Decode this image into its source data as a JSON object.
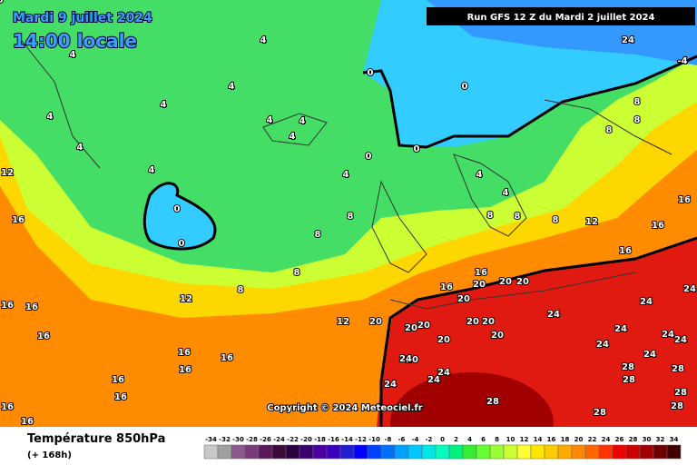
{
  "header": {
    "date": "Mardi 9 juillet 2024",
    "time": "14:00 locale",
    "run": "Run GFS 12 Z du Mardi 2 juillet 2024"
  },
  "copyright": "Copyright © 2024 Meteociel.fr",
  "footer": {
    "title": "Température 850hPa",
    "lead": "(+ 168h)"
  },
  "contour_labels": [
    4,
    4,
    4,
    4,
    4,
    4,
    4,
    4,
    4,
    4,
    0,
    0,
    0,
    0,
    0,
    0,
    4,
    4,
    4,
    8,
    8,
    8,
    8,
    8,
    8,
    8,
    8,
    8,
    8,
    12,
    12,
    12,
    12,
    16,
    16,
    16,
    16,
    16,
    16,
    16,
    16,
    16,
    16,
    16,
    16,
    16,
    16,
    16,
    16,
    20,
    20,
    20,
    20,
    20,
    20,
    20,
    20,
    20,
    20,
    20,
    20,
    24,
    24,
    24,
    24,
    24,
    24,
    24,
    24,
    24,
    24,
    24,
    24,
    28,
    28,
    28,
    28,
    28,
    28,
    28,
    24,
    -4,
    0
  ],
  "legend": {
    "values": [
      -34,
      -32,
      -30,
      -28,
      -26,
      -24,
      -22,
      -20,
      -18,
      -16,
      -14,
      -12,
      -10,
      -8,
      -6,
      -4,
      -2,
      0,
      2,
      4,
      6,
      8,
      10,
      12,
      14,
      16,
      18,
      20,
      22,
      24,
      26,
      28,
      30,
      32,
      34
    ],
    "colors": [
      "#c8c8c8",
      "#a0a0a0",
      "#8c5a8c",
      "#7a3a7a",
      "#5a1a5a",
      "#3a0a3a",
      "#2a0040",
      "#3a0070",
      "#4a00a0",
      "#3a00c0",
      "#2020d0",
      "#0000ff",
      "#0040ff",
      "#0070ff",
      "#00a0ff",
      "#00c8ff",
      "#00e6e6",
      "#00ffc0",
      "#00f080",
      "#33ee33",
      "#66ff33",
      "#99ff33",
      "#ccff33",
      "#ffff33",
      "#ffe600",
      "#ffcc00",
      "#ffaa00",
      "#ff8800",
      "#ff6600",
      "#ff3300",
      "#ee0000",
      "#cc0000",
      "#a00000",
      "#700000",
      "#400000"
    ]
  }
}
